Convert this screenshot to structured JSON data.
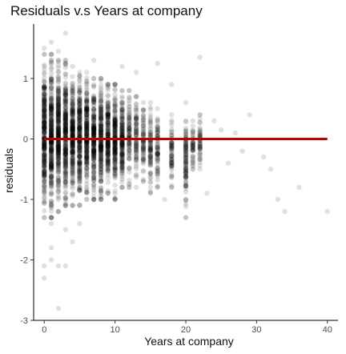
{
  "chart_data": {
    "type": "scatter",
    "title": "Residuals v.s Years at company",
    "xlabel": "Years at company",
    "ylabel": "residuals",
    "xlim": [
      -1.5,
      41.5
    ],
    "ylim": [
      -3,
      1.9
    ],
    "x_ticks": [
      0,
      10,
      20,
      30,
      40
    ],
    "y_ticks": [
      -3,
      -2,
      -1,
      0,
      1
    ],
    "grid": false,
    "point_color": "#000000",
    "point_opacity": 0.12,
    "columns": [
      {
        "x": 0,
        "ymin": -1.3,
        "ymax": 1.4
      },
      {
        "x": 1,
        "ymin": -1.3,
        "ymax": 1.4
      },
      {
        "x": 2,
        "ymin": -1.2,
        "ymax": 1.3
      },
      {
        "x": 3,
        "ymin": -1.1,
        "ymax": 1.3
      },
      {
        "x": 4,
        "ymin": -1.1,
        "ymax": 1.2
      },
      {
        "x": 5,
        "ymin": -1.1,
        "ymax": 1.1
      },
      {
        "x": 6,
        "ymin": -1.0,
        "ymax": 1.1
      },
      {
        "x": 7,
        "ymin": -1.0,
        "ymax": 1.0
      },
      {
        "x": 8,
        "ymin": -1.0,
        "ymax": 1.0
      },
      {
        "x": 9,
        "ymin": -0.9,
        "ymax": 0.9
      },
      {
        "x": 10,
        "ymin": -1.0,
        "ymax": 0.9
      },
      {
        "x": 11,
        "ymin": -0.8,
        "ymax": 0.8
      },
      {
        "x": 12,
        "ymin": -0.8,
        "ymax": 0.8
      },
      {
        "x": 13,
        "ymin": -0.8,
        "ymax": 0.7
      },
      {
        "x": 14,
        "ymin": -0.7,
        "ymax": 0.6
      },
      {
        "x": 15,
        "ymin": -0.9,
        "ymax": 0.6
      },
      {
        "x": 16,
        "ymin": -0.8,
        "ymax": 0.5
      },
      {
        "x": 18,
        "ymin": -0.8,
        "ymax": 0.4
      },
      {
        "x": 20,
        "ymin": -1.3,
        "ymax": 0.6
      },
      {
        "x": 21,
        "ymin": -0.5,
        "ymax": 0.3
      },
      {
        "x": 22,
        "ymin": -0.5,
        "ymax": 0.4
      }
    ],
    "outliers": [
      {
        "x": 0,
        "y": -2.3
      },
      {
        "x": 0,
        "y": -2.1
      },
      {
        "x": 1,
        "y": -2.0
      },
      {
        "x": 1,
        "y": -1.8
      },
      {
        "x": 2,
        "y": -2.1
      },
      {
        "x": 3,
        "y": -2.1
      },
      {
        "x": 2,
        "y": -2.8
      },
      {
        "x": 4,
        "y": -1.7
      },
      {
        "x": 1,
        "y": -1.4
      },
      {
        "x": 3,
        "y": -1.5
      },
      {
        "x": 5,
        "y": -1.4
      },
      {
        "x": 3,
        "y": 1.75
      },
      {
        "x": 1,
        "y": 1.6
      },
      {
        "x": 0,
        "y": 1.5
      },
      {
        "x": 2,
        "y": 1.45
      },
      {
        "x": 7,
        "y": 1.3
      },
      {
        "x": 11,
        "y": 1.2
      },
      {
        "x": 13,
        "y": 1.1
      },
      {
        "x": 16,
        "y": 1.25
      },
      {
        "x": 22,
        "y": 1.35
      },
      {
        "x": 18,
        "y": 0.9
      },
      {
        "x": 24,
        "y": 0.3
      },
      {
        "x": 25,
        "y": 0.15
      },
      {
        "x": 26,
        "y": -0.4
      },
      {
        "x": 27,
        "y": 0.1
      },
      {
        "x": 28,
        "y": -0.2
      },
      {
        "x": 29,
        "y": 0.4
      },
      {
        "x": 31,
        "y": -0.3
      },
      {
        "x": 32,
        "y": -0.5
      },
      {
        "x": 33,
        "y": -1.0
      },
      {
        "x": 34,
        "y": -1.2
      },
      {
        "x": 36,
        "y": -0.8
      },
      {
        "x": 40,
        "y": -1.2
      },
      {
        "x": 23,
        "y": -0.9
      },
      {
        "x": 20,
        "y": -1.3
      },
      {
        "x": 17,
        "y": -1.0
      }
    ],
    "fit_line": {
      "x": [
        0,
        40
      ],
      "y": [
        0,
        0
      ],
      "color": "#bb0000",
      "type": "horizontal-at-zero"
    }
  }
}
